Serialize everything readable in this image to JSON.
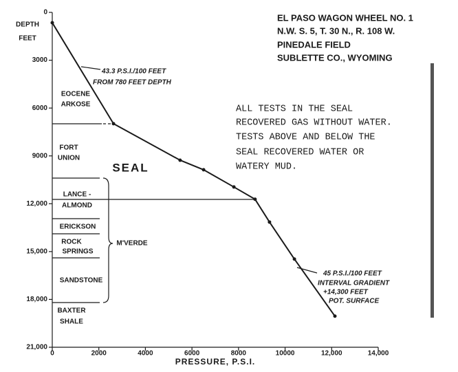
{
  "chart_data": {
    "type": "line",
    "ylabel": [
      "DEPTH",
      "FEET"
    ],
    "xlabel": "PRESSURE, P.S.I.",
    "xlim": [
      0,
      14000
    ],
    "xticks": [
      0,
      2000,
      4000,
      6000,
      8000,
      10000,
      {
        "value": 12000,
        "label": "12,000"
      },
      {
        "value": 14000,
        "label": "14,000"
      }
    ],
    "ylim": [
      0,
      21000
    ],
    "yticks": [
      0,
      3000,
      6000,
      9000,
      {
        "value": 12000,
        "label": "12,000"
      },
      {
        "value": 15000,
        "label": "15,000"
      },
      {
        "value": 18000,
        "label": "18,000"
      },
      {
        "value": 21000,
        "label": "21,000"
      }
    ],
    "y_inverted": true,
    "series": [
      {
        "color": "#1a1a1a",
        "x": [
          0,
          2630,
          5490,
          6500,
          7800,
          8710,
          9330,
          10400,
          12140
        ],
        "values": [
          650,
          6980,
          9270,
          9870,
          10950,
          11720,
          13150,
          15470,
          19050
        ]
      }
    ],
    "title_block": [
      "EL PASO WAGON WHEEL NO. 1",
      "N.W. S. 5, T. 30 N., R. 108 W.",
      "PINEDALE FIELD",
      "SUBLETTE CO., WYOMING"
    ],
    "note": [
      "ALL TESTS IN THE SEAL",
      "RECOVERED GAS WITHOUT WATER.",
      "TESTS ABOVE AND BELOW THE",
      "SEAL RECOVERED WATER OR",
      "WATERY MUD."
    ],
    "upper_gradient": [
      "43.3 P.S.I./100 FEET",
      "FROM 780 FEET DEPTH"
    ],
    "lower_gradient": [
      "45 P.S.I./100 FEET",
      "INTERVAL GRADIENT",
      "+14,300 FEET",
      "POT. SURFACE"
    ],
    "formations": [
      "EOCENE",
      "ARKOSE",
      "FORT",
      "UNION",
      "SEAL",
      "LANCE -",
      "ALMOND",
      "ERICKSON",
      "ROCK",
      "SPRINGS",
      "SANDSTONE",
      "BAXTER",
      "SHALE",
      "M'VERDE"
    ]
  }
}
